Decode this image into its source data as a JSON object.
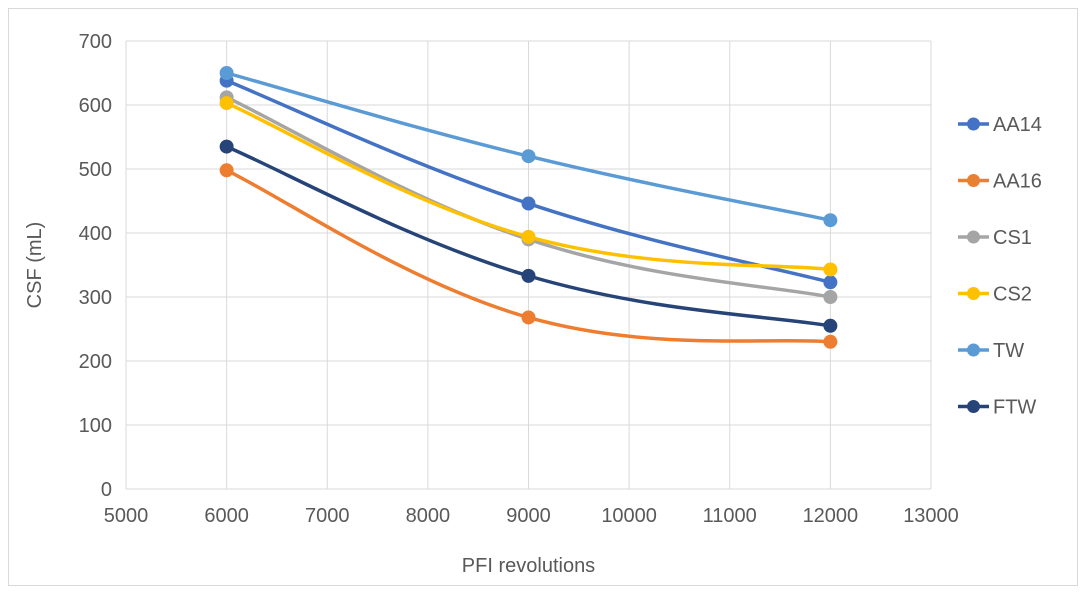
{
  "chart_data": {
    "type": "scatter",
    "title": "",
    "xlabel": "PFI revolutions",
    "ylabel": "CSF  (mL)",
    "xlim": [
      5000,
      13000
    ],
    "ylim": [
      0,
      700
    ],
    "xticks": [
      5000,
      6000,
      7000,
      8000,
      9000,
      10000,
      11000,
      12000,
      13000
    ],
    "yticks": [
      0,
      100,
      200,
      300,
      400,
      500,
      600,
      700
    ],
    "grid": "vertical and horizontal major gridlines",
    "line_style": "smoothed lines with circular markers",
    "legend_position": "right",
    "x": [
      6000,
      9000,
      12000
    ],
    "series": [
      {
        "name": "AA14",
        "color": "#4472C4",
        "values": [
          638,
          446,
          323
        ]
      },
      {
        "name": "AA16",
        "color": "#ED7D31",
        "values": [
          498,
          268,
          230
        ]
      },
      {
        "name": "CS1",
        "color": "#A5A5A5",
        "values": [
          612,
          390,
          300
        ]
      },
      {
        "name": "CS2",
        "color": "#FFC000",
        "values": [
          603,
          394,
          343
        ]
      },
      {
        "name": "TW",
        "color": "#5B9BD5",
        "values": [
          650,
          520,
          420
        ]
      },
      {
        "name": "FTW",
        "color": "#264478",
        "values": [
          535,
          333,
          255
        ]
      }
    ]
  }
}
